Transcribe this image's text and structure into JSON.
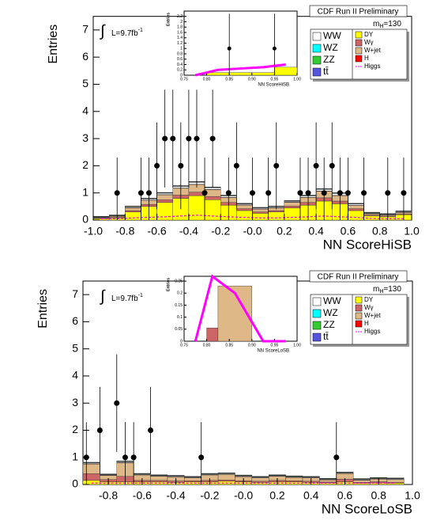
{
  "chart_data": [
    {
      "type": "histogram",
      "title": "CDF Run II Preliminary",
      "y_label": "Entries",
      "x_label": "NN ScoreHiSB",
      "integral": "∫",
      "lumi": {
        "text": "L=9.7fb",
        "sup": "-1"
      },
      "mass": {
        "main": "m",
        "sub": "H",
        "rest": "=130"
      },
      "xlim": [
        -1,
        1
      ],
      "ylim": [
        0,
        7.5
      ],
      "yticks": [
        0,
        1,
        2,
        3,
        4,
        5,
        6,
        7
      ],
      "xticks": [
        {
          "value": -1,
          "label": "-1.0"
        },
        {
          "value": -0.8,
          "label": "-0.8"
        },
        {
          "value": -0.6,
          "label": "-0.6"
        },
        {
          "value": -0.4,
          "label": "-0.4"
        },
        {
          "value": -0.2,
          "label": "-0.2"
        },
        {
          "value": 0,
          "label": "-0.0"
        },
        {
          "value": 0.2,
          "label": "0.2"
        },
        {
          "value": 0.4,
          "label": "0.4"
        },
        {
          "value": 0.6,
          "label": "0.6"
        },
        {
          "value": 0.8,
          "label": "0.8"
        },
        {
          "value": 1,
          "label": "1.0"
        }
      ],
      "bins": [
        -1,
        -0.9,
        -0.8,
        -0.7,
        -0.6,
        -0.5,
        -0.4,
        -0.3,
        -0.2,
        -0.1,
        0,
        0.1,
        0.2,
        0.3,
        0.4,
        0.5,
        0.6,
        0.7,
        0.8,
        0.9,
        1
      ],
      "series": [
        {
          "name": "DY",
          "color": "#ffff00",
          "values": [
            0.05,
            0.08,
            0.3,
            0.5,
            0.65,
            0.8,
            0.9,
            0.75,
            0.55,
            0.35,
            0.25,
            0.3,
            0.45,
            0.55,
            0.7,
            0.6,
            0.35,
            0.15,
            0.12,
            0.2
          ]
        },
        {
          "name": "Wγ",
          "color": "#cc6666",
          "values": [
            0.02,
            0.02,
            0.05,
            0.08,
            0.1,
            0.12,
            0.13,
            0.12,
            0.1,
            0.07,
            0.05,
            0.05,
            0.07,
            0.1,
            0.12,
            0.1,
            0.07,
            0.03,
            0.03,
            0.03
          ]
        },
        {
          "name": "W+jet",
          "color": "#deb887",
          "values": [
            0.02,
            0.04,
            0.1,
            0.15,
            0.18,
            0.25,
            0.28,
            0.25,
            0.18,
            0.13,
            0.1,
            0.1,
            0.13,
            0.18,
            0.24,
            0.2,
            0.12,
            0.05,
            0.04,
            0.05
          ]
        },
        {
          "name": "H",
          "color": "#ff0000",
          "values": [
            0.01,
            0.01,
            0.01,
            0.01,
            0.01,
            0.01,
            0.01,
            0.01,
            0.01,
            0.01,
            0.01,
            0.01,
            0.01,
            0.01,
            0.01,
            0.01,
            0.01,
            0.01,
            0.01,
            0.01
          ]
        },
        {
          "name": "Higgs",
          "color": "#ff00ff",
          "dashed": true,
          "values": [
            0.05,
            0.05,
            0.08,
            0.1,
            0.12,
            0.15,
            0.18,
            0.15,
            0.12,
            0.1,
            0.08,
            0.08,
            0.1,
            0.12,
            0.15,
            0.12,
            0.1,
            0.06,
            0.05,
            0.05
          ]
        },
        {
          "name": "WW",
          "color": "#ffffff",
          "values": [
            0.01,
            0.01,
            0.03,
            0.04,
            0.05,
            0.06,
            0.07,
            0.06,
            0.05,
            0.03,
            0.03,
            0.03,
            0.03,
            0.05,
            0.06,
            0.07,
            0.04,
            0.02,
            0.01,
            0.02
          ]
        },
        {
          "name": "WZ",
          "color": "#00ffff",
          "values": [
            0.01,
            0.01,
            0.01,
            0.01,
            0.01,
            0.01,
            0.01,
            0.01,
            0.01,
            0.01,
            0.01,
            0.01,
            0.01,
            0.01,
            0.01,
            0.01,
            0.01,
            0.01,
            0.01,
            0.01
          ]
        },
        {
          "name": "ZZ",
          "color": "#33cc33",
          "values": [
            0.01,
            0.01,
            0.01,
            0.01,
            0.01,
            0.01,
            0.01,
            0.01,
            0.01,
            0.01,
            0.01,
            0.01,
            0.01,
            0.01,
            0.01,
            0.01,
            0.01,
            0.01,
            0.01,
            0.01
          ]
        },
        {
          "name": "tt̄",
          "color": "#5555dd",
          "values": [
            0.01,
            0.01,
            0.01,
            0.01,
            0.01,
            0.01,
            0.01,
            0.01,
            0.01,
            0.01,
            0.01,
            0.01,
            0.01,
            0.01,
            0.01,
            0.01,
            0.01,
            0.01,
            0.01,
            0.01
          ]
        }
      ],
      "points": {
        "x": [
          -0.85,
          -0.7,
          -0.65,
          -0.6,
          -0.55,
          -0.5,
          -0.45,
          -0.4,
          -0.35,
          -0.3,
          -0.25,
          -0.15,
          -0.1,
          0,
          0.1,
          0.15,
          0.3,
          0.35,
          0.4,
          0.45,
          0.5,
          0.55,
          0.6,
          0.7,
          0.85,
          0.95
        ],
        "y": [
          1,
          1,
          1,
          2,
          3,
          3,
          2,
          3,
          3,
          1,
          3,
          1,
          2,
          1,
          1,
          2,
          1,
          1,
          2,
          1,
          2,
          1,
          1,
          1,
          1,
          1
        ],
        "yerr": [
          1.3,
          1.3,
          1.3,
          1.6,
          1.8,
          1.8,
          1.6,
          1.8,
          1.8,
          1.3,
          1.8,
          1.3,
          1.6,
          1.3,
          1.3,
          1.6,
          1.3,
          1.3,
          1.6,
          1.3,
          1.6,
          1.3,
          1.3,
          1.3,
          1.3,
          1.3
        ]
      },
      "inset": {
        "type": "histogram",
        "y_label": "Entries",
        "x_label": "NN ScoreHiSB",
        "xlim": [
          0.75,
          1
        ],
        "ylim": [
          0,
          2.4
        ],
        "yticks": [
          0,
          0.2,
          0.4,
          0.6,
          0.8,
          1,
          1.2,
          1.4,
          1.6,
          1.8,
          2,
          2.2
        ],
        "xticks": [
          0.75,
          {
            "value": 0.8,
            "label": "0.80"
          },
          0.85,
          {
            "value": 0.9,
            "label": "0.90"
          },
          0.95,
          {
            "value": 1,
            "label": "1.00"
          }
        ],
        "bins": [
          0.75,
          0.8,
          0.85,
          0.9,
          0.95,
          1
        ],
        "series": [
          {
            "color": "#ffff00",
            "values": [
              0,
              0.1,
              0.1,
              0.1,
              0.3
            ]
          },
          {
            "color": "#ff00ff",
            "dashed": true,
            "values": [
              0,
              0.2,
              0.25,
              0.3,
              0.4
            ]
          }
        ],
        "points": {
          "x": [
            0.85,
            0.95
          ],
          "y": [
            1,
            1
          ],
          "yerr": [
            1.3,
            1.3
          ]
        }
      }
    },
    {
      "type": "histogram",
      "title": "CDF Run II Preliminary",
      "y_label": "Entries",
      "x_label": "NN ScoreLoSB",
      "integral": "∫",
      "lumi": {
        "text": "L=9.7fb",
        "sup": "-1"
      },
      "mass": {
        "main": "m",
        "sub": "H",
        "rest": "=130"
      },
      "xlim": [
        -0.95,
        1
      ],
      "ylim": [
        0,
        7.5
      ],
      "yticks": [
        0,
        1,
        2,
        3,
        4,
        5,
        6,
        7
      ],
      "xticks": [
        {
          "value": -0.8,
          "label": "-0.8"
        },
        {
          "value": -0.6,
          "label": "-0.6"
        },
        {
          "value": -0.4,
          "label": "-0.4"
        },
        {
          "value": -0.2,
          "label": "-0.2"
        },
        {
          "value": 0,
          "label": "-0.0"
        },
        {
          "value": 0.2,
          "label": "0.2"
        },
        {
          "value": 0.4,
          "label": "0.4"
        },
        {
          "value": 0.6,
          "label": "0.6"
        },
        {
          "value": 0.8,
          "label": "0.8"
        },
        {
          "value": 1,
          "label": "1.0"
        }
      ],
      "bins": [
        -0.95,
        -0.85,
        -0.75,
        -0.65,
        -0.55,
        -0.45,
        -0.35,
        -0.25,
        -0.15,
        -0.05,
        0.05,
        0.15,
        0.25,
        0.35,
        0.45,
        0.55,
        0.65,
        0.75,
        0.85,
        0.95
      ],
      "series": [
        {
          "name": "DY",
          "color": "#ffff00",
          "values": [
            0.15,
            0.1,
            0.1,
            0.1,
            0.1,
            0.08,
            0.1,
            0.1,
            0.12,
            0.1,
            0.08,
            0.1,
            0.1,
            0.08,
            0.06,
            0.1,
            0.05,
            0.06,
            0.05
          ]
        },
        {
          "name": "Wγ",
          "color": "#cc6666",
          "values": [
            0.25,
            0.08,
            0.2,
            0.05,
            0.05,
            0.05,
            0.04,
            0.05,
            0.05,
            0.04,
            0.04,
            0.05,
            0.04,
            0.04,
            0.03,
            0.1,
            0.03,
            0.04,
            0.03
          ]
        },
        {
          "name": "W+jet",
          "color": "#deb887",
          "values": [
            0.35,
            0.15,
            0.5,
            0.2,
            0.15,
            0.15,
            0.1,
            0.2,
            0.2,
            0.15,
            0.12,
            0.15,
            0.12,
            0.12,
            0.08,
            0.2,
            0.08,
            0.1,
            0.1
          ]
        },
        {
          "name": "H",
          "color": "#ff0000",
          "values": [
            0.01,
            0.01,
            0.01,
            0.01,
            0.01,
            0.01,
            0.01,
            0.01,
            0.01,
            0.01,
            0.01,
            0.01,
            0.01,
            0.01,
            0.01,
            0.01,
            0.01,
            0.01,
            0.01
          ]
        },
        {
          "name": "Higgs",
          "color": "#ff00ff",
          "dashed": true,
          "values": [
            0.05,
            0.05,
            0.05,
            0.05,
            0.05,
            0.05,
            0.05,
            0.05,
            0.05,
            0.05,
            0.05,
            0.05,
            0.05,
            0.05,
            0.05,
            0.05,
            0.05,
            0.05,
            0.05
          ]
        },
        {
          "name": "WW",
          "color": "#ffffff",
          "values": [
            0.03,
            0.02,
            0.03,
            0.02,
            0.02,
            0.02,
            0.02,
            0.02,
            0.02,
            0.02,
            0.02,
            0.02,
            0.02,
            0.02,
            0.02,
            0.02,
            0.02,
            0.02,
            0.02
          ]
        },
        {
          "name": "WZ",
          "color": "#00ffff",
          "values": [
            0.01,
            0.01,
            0.01,
            0.01,
            0.01,
            0.01,
            0.01,
            0.01,
            0.01,
            0.01,
            0.01,
            0.01,
            0.01,
            0.01,
            0.01,
            0.01,
            0.01,
            0.01,
            0.01
          ]
        },
        {
          "name": "ZZ",
          "color": "#33cc33",
          "values": [
            0.01,
            0.01,
            0.01,
            0.01,
            0.01,
            0.01,
            0.01,
            0.01,
            0.01,
            0.01,
            0.01,
            0.01,
            0.01,
            0.01,
            0.01,
            0.01,
            0.01,
            0.01,
            0.01
          ]
        },
        {
          "name": "tt̄",
          "color": "#5555dd",
          "values": [
            0.01,
            0.01,
            0.01,
            0.01,
            0.01,
            0.01,
            0.01,
            0.01,
            0.01,
            0.01,
            0.01,
            0.01,
            0.01,
            0.01,
            0.01,
            0.01,
            0.01,
            0.01,
            0.01
          ]
        }
      ],
      "points": {
        "x": [
          -0.93,
          -0.85,
          -0.75,
          -0.7,
          -0.65,
          -0.55,
          -0.25,
          0.55
        ],
        "y": [
          1,
          2,
          3,
          1,
          1,
          2,
          1,
          1
        ],
        "yerr": [
          1.3,
          1.6,
          1.8,
          1.3,
          1.3,
          1.6,
          1.3,
          1.3
        ]
      },
      "inset": {
        "type": "histogram",
        "y_label": "Entries",
        "x_label": "NN ScoreLoSB",
        "xlim": [
          0.75,
          1
        ],
        "ylim": [
          0,
          0.27
        ],
        "yticks": [
          0,
          0.05,
          0.1,
          0.15,
          0.2,
          0.25
        ],
        "xticks": [
          0.75,
          {
            "value": 0.8,
            "label": "0.80"
          },
          0.85,
          {
            "value": 0.9,
            "label": "0.90"
          },
          0.95,
          {
            "value": 1,
            "label": "1.00"
          }
        ],
        "bins": [
          0.75,
          0.8,
          0.825,
          0.9,
          0.95,
          1
        ],
        "series": [
          {
            "color": "#cc6666",
            "values": [
              0,
              0.055,
              0,
              0,
              0
            ]
          },
          {
            "color": "#deb887",
            "values": [
              0,
              0,
              0.23,
              0,
              0
            ]
          },
          {
            "color": "#ff00ff",
            "dashed": true,
            "values": [
              0,
              0.27,
              0.2,
              0,
              0
            ]
          }
        ],
        "points": {
          "x": [],
          "y": [],
          "yerr": []
        }
      }
    }
  ]
}
